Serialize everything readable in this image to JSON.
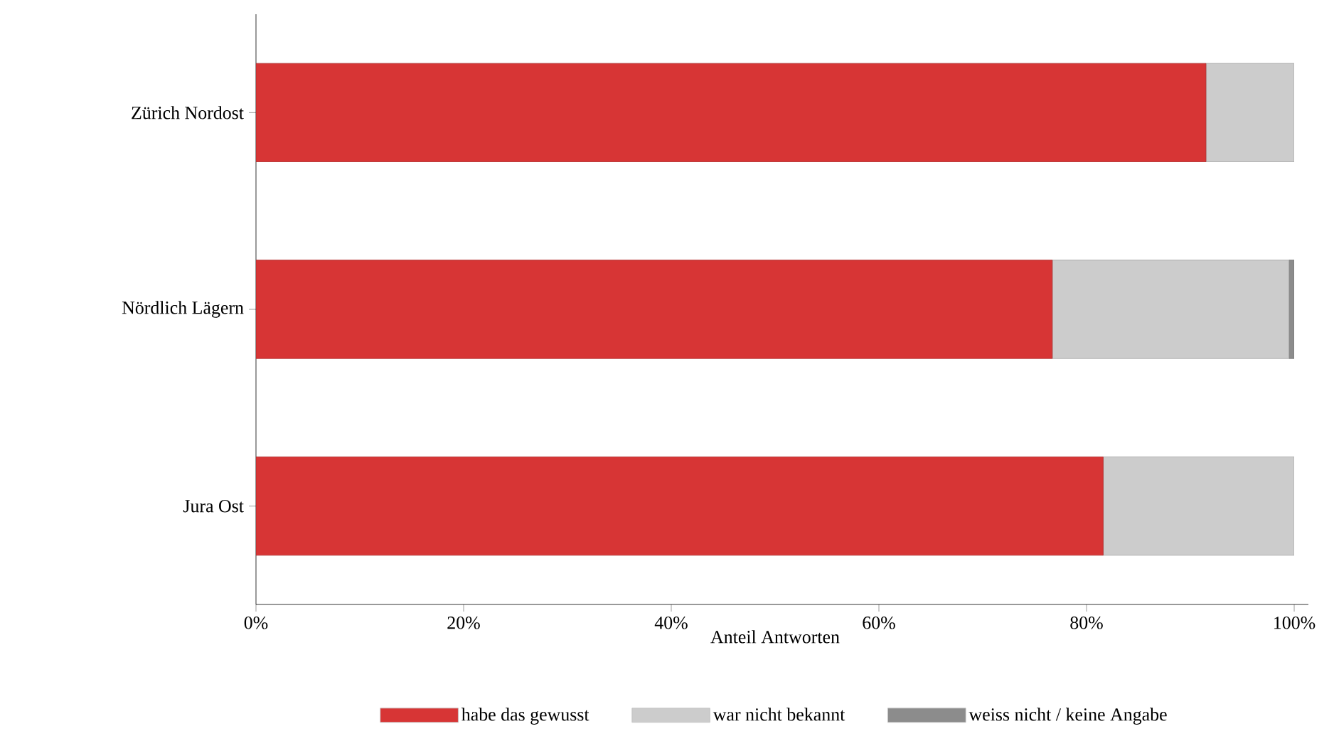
{
  "chart_data": {
    "type": "bar",
    "orientation": "horizontal",
    "stacked": true,
    "categories": [
      "Zürich Nordost",
      "Nördlich Lägern",
      "Jura Ost"
    ],
    "series": [
      {
        "name": "habe das gewusst",
        "color": "#d73535",
        "values": [
          91.5,
          76.7,
          81.6
        ]
      },
      {
        "name": "war nicht bekannt",
        "color": "#cccccc",
        "values": [
          8.5,
          22.8,
          18.4
        ]
      },
      {
        "name": "weiss nicht / keine Angabe",
        "color": "#8c8c8c",
        "values": [
          0,
          0.5,
          0
        ]
      }
    ],
    "xlabel": "Anteil Antworten",
    "xlim": [
      0,
      100
    ],
    "xticks": [
      {
        "value": 0,
        "label": "0%"
      },
      {
        "value": 20,
        "label": "20%"
      },
      {
        "value": 40,
        "label": "40%"
      },
      {
        "value": 60,
        "label": "60%"
      },
      {
        "value": 80,
        "label": "80%"
      },
      {
        "value": 100,
        "label": "100%"
      }
    ],
    "grid": false,
    "legend": "bottom"
  }
}
